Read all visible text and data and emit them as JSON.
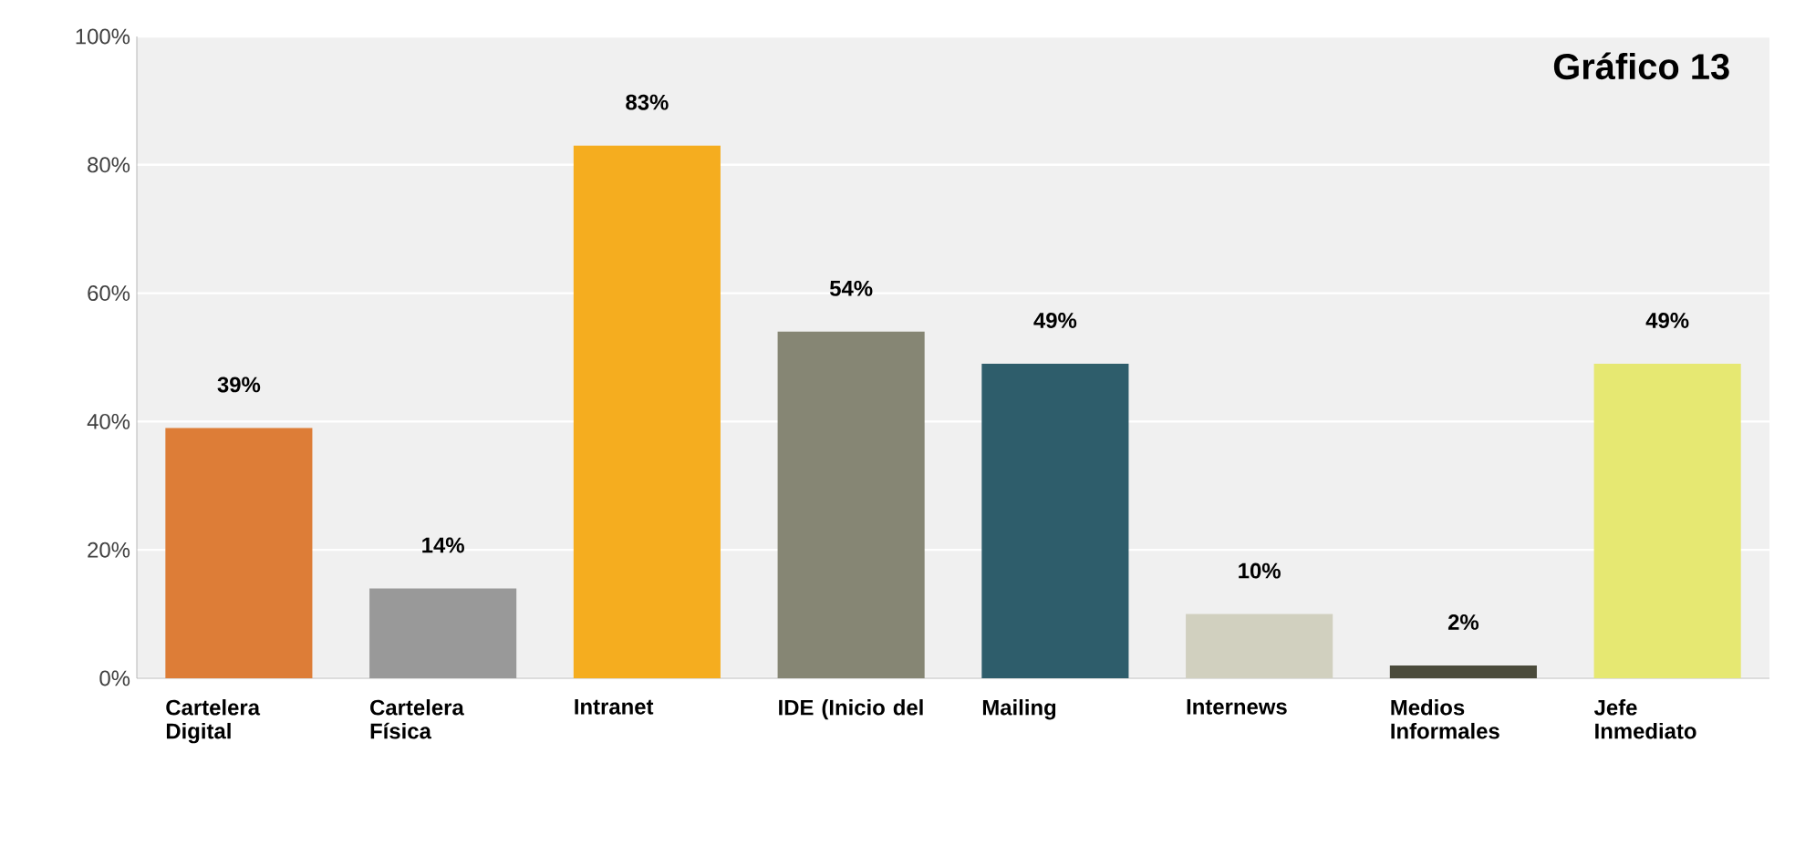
{
  "chart_data": {
    "type": "bar",
    "title": "Gráfico 13",
    "categories": [
      "Cartelera Digital",
      "Cartelera Física",
      "Intranet",
      "IDE (Inicio del",
      "Mailing",
      "Internews",
      "Medios Informales",
      "Jefe Inmediato"
    ],
    "values": [
      39,
      14,
      83,
      54,
      49,
      10,
      2,
      49
    ],
    "value_labels": [
      "39%",
      "14%",
      "83%",
      "54%",
      "49%",
      "10%",
      "2%",
      "49%"
    ],
    "colors": [
      "#dd7d37",
      "#999999",
      "#f5ad1f",
      "#868674",
      "#2e5d6b",
      "#d1d0bf",
      "#4b4b3b",
      "#e6e872"
    ],
    "ylim": [
      0,
      100
    ],
    "yticks": [
      {
        "value": 0,
        "label": "0%"
      },
      {
        "value": 20,
        "label": "20%"
      },
      {
        "value": 40,
        "label": "40%"
      },
      {
        "value": 60,
        "label": "60%"
      },
      {
        "value": 80,
        "label": "80%"
      },
      {
        "value": 100,
        "label": "100%"
      }
    ],
    "grid": "y"
  }
}
